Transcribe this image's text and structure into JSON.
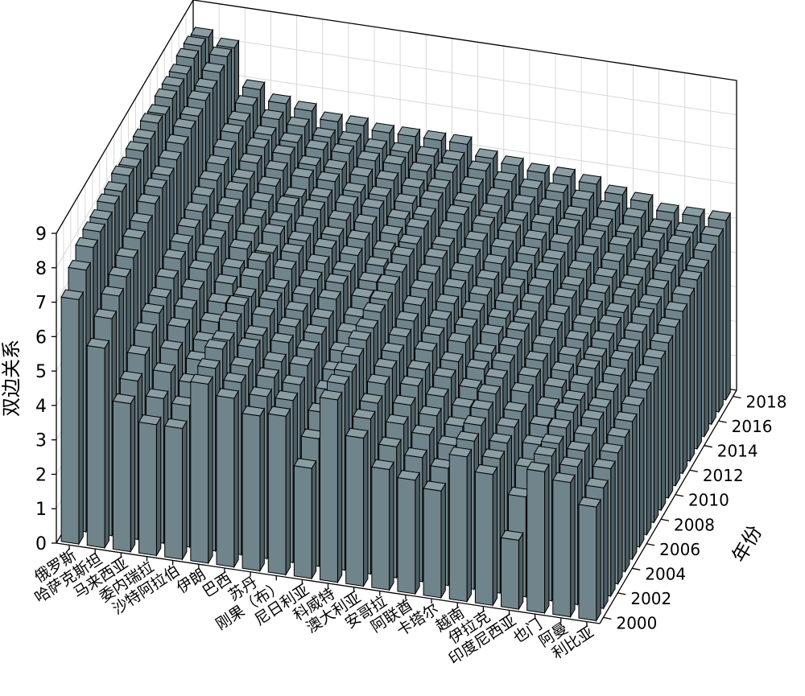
{
  "chart_data": {
    "type": "bar3d",
    "zlabel": "双边关系",
    "xlabel": "年份",
    "categories": [
      "俄罗斯",
      "哈萨克斯坦",
      "马来西亚",
      "委内瑞拉",
      "沙特阿拉伯",
      "伊朗",
      "巴西",
      "苏丹",
      "刚果（布）",
      "尼日利亚",
      "科威特",
      "澳大利亚",
      "安哥拉",
      "阿联酋",
      "卡塔尔",
      "越南",
      "伊拉克",
      "印度尼西亚",
      "也门",
      "阿曼",
      "利比亚"
    ],
    "x": [
      2000,
      2001,
      2002,
      2003,
      2004,
      2005,
      2006,
      2007,
      2008,
      2009,
      2010,
      2011,
      2012,
      2013,
      2014,
      2015,
      2016,
      2017,
      2018
    ],
    "xticks": [
      2000,
      2002,
      2004,
      2006,
      2008,
      2010,
      2012,
      2014,
      2016,
      2018
    ],
    "zlim": [
      0,
      9
    ],
    "zticks": [
      0,
      1,
      2,
      3,
      4,
      5,
      6,
      7,
      8,
      9
    ],
    "grid": true,
    "color": "#70848b",
    "values": [
      [
        7.1,
        7.6,
        7.9,
        8.0,
        8.0,
        8.1,
        8.1,
        8.2,
        8.1,
        8.2,
        8.2,
        8.3,
        8.2,
        8.3,
        8.3,
        8.3,
        8.4,
        8.4,
        8.3
      ],
      [
        5.8,
        6.3,
        6.6,
        6.8,
        7.0,
        7.2,
        7.3,
        7.5,
        7.6,
        7.6,
        7.7,
        7.8,
        7.9,
        7.9,
        8.0,
        8.0,
        8.1,
        8.2,
        8.1
      ],
      [
        4.3,
        4.6,
        5.0,
        5.3,
        5.5,
        5.6,
        5.8,
        6.0,
        6.1,
        6.2,
        6.3,
        6.4,
        6.5,
        6.6,
        6.7,
        6.8,
        6.8,
        6.9,
        7.0
      ],
      [
        3.8,
        4.2,
        4.6,
        4.9,
        5.2,
        5.4,
        5.6,
        5.8,
        5.9,
        6.0,
        6.1,
        6.2,
        6.3,
        6.3,
        6.4,
        6.5,
        6.5,
        6.6,
        6.7
      ],
      [
        3.8,
        4.1,
        4.4,
        4.7,
        4.9,
        5.1,
        5.3,
        5.5,
        5.6,
        5.8,
        5.9,
        6.0,
        6.1,
        6.2,
        6.3,
        6.4,
        6.4,
        6.5,
        6.6
      ],
      [
        5.2,
        5.3,
        5.5,
        5.4,
        5.6,
        5.7,
        5.6,
        5.8,
        5.9,
        5.8,
        6.0,
        6.0,
        6.1,
        6.0,
        6.2,
        6.2,
        6.3,
        6.3,
        6.4
      ],
      [
        4.9,
        5.0,
        5.1,
        5.3,
        5.3,
        5.5,
        5.6,
        5.6,
        5.8,
        5.9,
        5.9,
        6.0,
        6.1,
        6.1,
        6.2,
        6.2,
        6.3,
        6.3,
        6.4
      ],
      [
        4.5,
        4.7,
        4.9,
        5.0,
        5.2,
        5.3,
        5.4,
        5.5,
        5.6,
        5.7,
        5.8,
        5.8,
        5.9,
        6.0,
        6.0,
        6.1,
        6.2,
        6.2,
        6.3
      ],
      [
        4.6,
        4.7,
        4.8,
        5.0,
        5.1,
        5.2,
        5.3,
        5.5,
        5.6,
        5.6,
        5.7,
        5.8,
        5.9,
        6.0,
        6.0,
        6.1,
        6.2,
        6.2,
        6.3
      ],
      [
        3.2,
        3.7,
        4.1,
        4.4,
        4.6,
        4.8,
        5.0,
        5.1,
        5.3,
        5.4,
        5.5,
        5.6,
        5.7,
        5.8,
        5.9,
        6.0,
        6.1,
        6.2,
        6.3
      ],
      [
        5.3,
        5.4,
        5.4,
        5.5,
        5.6,
        5.6,
        5.7,
        5.7,
        5.8,
        5.8,
        5.9,
        5.9,
        6.0,
        6.0,
        6.1,
        6.1,
        6.2,
        6.2,
        6.3
      ],
      [
        4.3,
        4.5,
        4.6,
        4.8,
        4.9,
        5.0,
        5.1,
        5.2,
        5.3,
        5.4,
        5.5,
        5.6,
        5.6,
        5.7,
        5.8,
        5.8,
        5.9,
        6.0,
        6.0
      ],
      [
        3.5,
        3.8,
        4.1,
        4.3,
        4.5,
        4.6,
        4.8,
        4.9,
        5.0,
        5.1,
        5.2,
        5.3,
        5.4,
        5.5,
        5.6,
        5.6,
        5.7,
        5.8,
        5.9
      ],
      [
        3.3,
        3.6,
        3.9,
        4.1,
        4.3,
        4.5,
        4.6,
        4.8,
        4.9,
        5.0,
        5.1,
        5.2,
        5.3,
        5.4,
        5.5,
        5.5,
        5.6,
        5.7,
        5.8
      ],
      [
        3.1,
        3.4,
        3.7,
        3.9,
        4.1,
        4.3,
        4.5,
        4.6,
        4.8,
        4.9,
        5.0,
        5.1,
        5.2,
        5.3,
        5.4,
        5.5,
        5.6,
        5.7,
        5.8
      ],
      [
        4.2,
        4.3,
        4.4,
        4.5,
        4.6,
        4.7,
        4.8,
        4.9,
        5.0,
        5.0,
        5.1,
        5.2,
        5.3,
        5.3,
        5.4,
        5.5,
        5.5,
        5.6,
        5.7
      ],
      [
        3.8,
        3.9,
        4.0,
        4.1,
        4.2,
        4.4,
        4.5,
        4.6,
        4.7,
        4.8,
        4.9,
        5.0,
        5.0,
        5.1,
        5.2,
        5.3,
        5.3,
        5.4,
        5.5
      ],
      [
        2.0,
        2.9,
        3.4,
        3.7,
        3.9,
        4.1,
        4.3,
        4.4,
        4.5,
        4.6,
        4.7,
        4.8,
        4.9,
        5.0,
        5.1,
        5.2,
        5.2,
        5.3,
        5.4
      ],
      [
        4.1,
        4.2,
        4.2,
        4.3,
        4.4,
        4.4,
        4.5,
        4.6,
        4.6,
        4.7,
        4.8,
        4.8,
        4.9,
        4.9,
        5.0,
        5.0,
        5.1,
        5.1,
        5.2
      ],
      [
        3.9,
        4.0,
        4.1,
        4.2,
        4.3,
        4.3,
        4.4,
        4.5,
        4.6,
        4.6,
        4.7,
        4.8,
        4.8,
        4.9,
        5.0,
        5.0,
        5.1,
        5.1,
        5.2
      ],
      [
        3.3,
        3.5,
        3.7,
        3.8,
        3.9,
        4.0,
        4.1,
        4.2,
        4.3,
        4.4,
        4.5,
        4.6,
        4.7,
        4.8,
        4.9,
        4.9,
        5.0,
        5.1,
        5.2
      ]
    ]
  }
}
